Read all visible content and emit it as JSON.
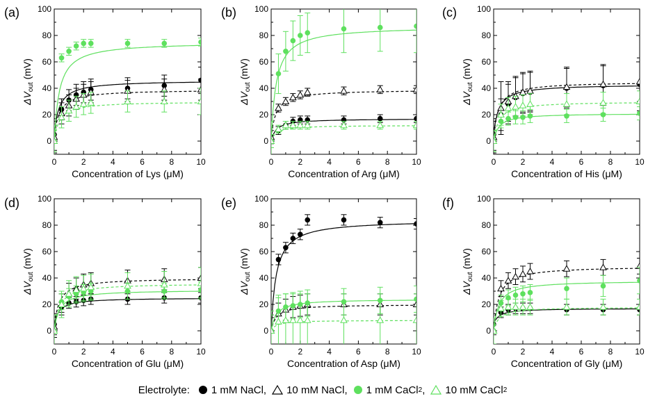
{
  "figure": {
    "y_label_main": "ΔV",
    "y_label_sub": "out",
    "y_label_unit": " (mV)"
  },
  "legend": {
    "title": "Electrolyte:",
    "items": [
      {
        "label": "1 mM NaCl,",
        "marker": "filled-circle",
        "color": "#000000",
        "dashed": false
      },
      {
        "label": "10 mM NaCl,",
        "marker": "open-triangle",
        "color": "#000000",
        "dashed": true
      },
      {
        "label": "1 mM CaCl",
        "sub": "2",
        "suffix": ",",
        "marker": "filled-circle",
        "color": "#5ee05e",
        "dashed": false
      },
      {
        "label": "10 mM CaCl",
        "sub": "2",
        "suffix": "",
        "marker": "open-triangle",
        "color": "#5ee05e",
        "dashed": true
      }
    ]
  },
  "chart_data": [
    {
      "type": "scatter",
      "panel": "(a)",
      "xlabel": "Concentration of Lys (μM)",
      "xlim": [
        0,
        10
      ],
      "ylim": [
        -10,
        100
      ],
      "xticks": [
        0,
        2,
        4,
        6,
        8,
        10
      ],
      "yticks": [
        0,
        20,
        40,
        60,
        80,
        100
      ],
      "x": [
        0,
        0.5,
        1,
        1.5,
        2,
        2.5,
        5,
        7.5,
        10
      ],
      "series": [
        {
          "key": "1 mM NaCl",
          "values": [
            5,
            24,
            31,
            35,
            37,
            39,
            40,
            42,
            46
          ],
          "errors": [
            12,
            8,
            8,
            8,
            8,
            8,
            8,
            8,
            10
          ]
        },
        {
          "key": "10 mM NaCl",
          "values": [
            3,
            21,
            27,
            32,
            35,
            37,
            38,
            39,
            39
          ],
          "errors": [
            12,
            8,
            8,
            8,
            8,
            8,
            8,
            8,
            8
          ]
        },
        {
          "key": "1 mM CaCl2",
          "values": [
            0,
            63,
            68,
            72,
            74,
            74,
            74,
            74,
            75
          ],
          "errors": [
            8,
            3,
            3,
            3,
            3,
            3,
            3,
            3,
            3
          ]
        },
        {
          "key": "10 mM CaCl2",
          "values": [
            0,
            18,
            23,
            26,
            28,
            29,
            30,
            30,
            30
          ],
          "errors": [
            12,
            8,
            8,
            8,
            8,
            8,
            8,
            8,
            10
          ]
        }
      ]
    },
    {
      "type": "scatter",
      "panel": "(b)",
      "xlabel": "Concentration of Arg (μM)",
      "xlim": [
        0,
        10
      ],
      "ylim": [
        -10,
        100
      ],
      "xticks": [
        0,
        2,
        4,
        6,
        8,
        10
      ],
      "yticks": [
        0,
        20,
        40,
        60,
        80,
        100
      ],
      "x": [
        0,
        0.5,
        1,
        1.5,
        2,
        2.5,
        5,
        7.5,
        10
      ],
      "series": [
        {
          "key": "1 mM NaCl",
          "values": [
            0,
            8,
            12,
            15,
            16,
            16,
            16,
            17,
            17
          ],
          "errors": [
            5,
            3,
            3,
            3,
            3,
            3,
            3,
            3,
            3
          ]
        },
        {
          "key": "10 mM NaCl",
          "values": [
            3,
            25,
            30,
            33,
            35,
            37,
            38,
            39,
            39
          ],
          "errors": [
            5,
            3,
            3,
            3,
            3,
            3,
            3,
            3,
            3
          ]
        },
        {
          "key": "1 mM CaCl2",
          "values": [
            0,
            51,
            68,
            76,
            80,
            82,
            85,
            86,
            87
          ],
          "errors": [
            15,
            15,
            15,
            15,
            15,
            15,
            18,
            18,
            20
          ]
        },
        {
          "key": "10 mM CaCl2",
          "values": [
            0,
            9,
            12,
            12,
            12,
            12,
            12,
            12,
            12
          ],
          "errors": [
            5,
            3,
            3,
            3,
            3,
            3,
            3,
            3,
            3
          ]
        }
      ]
    },
    {
      "type": "scatter",
      "panel": "(c)",
      "xlabel": "Concentration of His (μM)",
      "xlim": [
        0,
        10
      ],
      "ylim": [
        -10,
        100
      ],
      "xticks": [
        0,
        2,
        4,
        6,
        8,
        10
      ],
      "yticks": [
        0,
        20,
        40,
        60,
        80,
        100
      ],
      "x": [
        0,
        0.5,
        1,
        1.5,
        2,
        2.5,
        5,
        7.5,
        10
      ],
      "series": [
        {
          "key": "1 mM NaCl",
          "values": [
            5,
            20,
            28,
            33,
            36,
            37,
            40,
            42,
            43
          ],
          "errors": [
            12,
            12,
            15,
            15,
            15,
            15,
            15,
            15,
            20
          ]
        },
        {
          "key": "10 mM NaCl",
          "values": [
            3,
            25,
            30,
            34,
            37,
            38,
            41,
            43,
            45
          ],
          "errors": [
            12,
            20,
            15,
            15,
            15,
            15,
            15,
            15,
            15
          ]
        },
        {
          "key": "1 mM CaCl2",
          "values": [
            0,
            15,
            17,
            18,
            18,
            19,
            19,
            20,
            21
          ],
          "errors": [
            8,
            5,
            5,
            5,
            5,
            5,
            5,
            5,
            5
          ]
        },
        {
          "key": "10 mM CaCl2",
          "values": [
            0,
            20,
            25,
            26,
            27,
            28,
            28,
            29,
            30
          ],
          "errors": [
            8,
            8,
            8,
            8,
            8,
            8,
            8,
            8,
            8
          ]
        }
      ]
    },
    {
      "type": "scatter",
      "panel": "(d)",
      "xlabel": "Concentration of Glu (μM)",
      "xlim": [
        0,
        10
      ],
      "ylim": [
        -10,
        100
      ],
      "xticks": [
        0,
        2,
        4,
        6,
        8,
        10
      ],
      "yticks": [
        0,
        20,
        40,
        60,
        80,
        100
      ],
      "x": [
        0,
        0.5,
        1,
        1.5,
        2,
        2.5,
        5,
        7.5,
        10
      ],
      "series": [
        {
          "key": "1 mM NaCl",
          "values": [
            5,
            18,
            21,
            22,
            23,
            24,
            24,
            25,
            25
          ],
          "errors": [
            8,
            4,
            4,
            4,
            4,
            4,
            4,
            4,
            4
          ]
        },
        {
          "key": "10 mM NaCl",
          "values": [
            3,
            20,
            28,
            32,
            35,
            36,
            38,
            39,
            40
          ],
          "errors": [
            8,
            8,
            8,
            8,
            8,
            8,
            8,
            8,
            8
          ]
        },
        {
          "key": "1 mM CaCl2",
          "values": [
            0,
            22,
            26,
            28,
            29,
            30,
            30,
            30,
            31
          ],
          "errors": [
            12,
            6,
            6,
            6,
            6,
            6,
            6,
            6,
            6
          ]
        },
        {
          "key": "10 mM CaCl2",
          "values": [
            0,
            20,
            28,
            31,
            32,
            33,
            34,
            35,
            36
          ],
          "errors": [
            12,
            10,
            10,
            10,
            10,
            10,
            10,
            10,
            12
          ]
        }
      ]
    },
    {
      "type": "scatter",
      "panel": "(e)",
      "xlabel": "Concentration of Asp (μM)",
      "xlim": [
        0,
        10
      ],
      "ylim": [
        -10,
        100
      ],
      "xticks": [
        0,
        2,
        4,
        6,
        8,
        10
      ],
      "yticks": [
        0,
        20,
        40,
        60,
        80,
        100
      ],
      "x": [
        0,
        0.5,
        1,
        1.5,
        2,
        2.5,
        5,
        7.5,
        10
      ],
      "series": [
        {
          "key": "1 mM NaCl",
          "values": [
            0,
            54,
            63,
            70,
            73,
            84,
            84,
            82,
            81
          ],
          "errors": [
            10,
            4,
            4,
            4,
            4,
            4,
            4,
            4,
            4
          ]
        },
        {
          "key": "10 mM NaCl",
          "values": [
            0,
            13,
            16,
            18,
            19,
            20,
            20,
            20,
            20
          ],
          "errors": [
            12,
            8,
            8,
            8,
            8,
            8,
            8,
            8,
            8
          ]
        },
        {
          "key": "1 mM CaCl2",
          "values": [
            0,
            15,
            18,
            19,
            20,
            21,
            22,
            23,
            24
          ],
          "errors": [
            12,
            10,
            10,
            10,
            10,
            10,
            10,
            10,
            10
          ]
        },
        {
          "key": "10 mM CaCl2",
          "values": [
            0,
            7,
            8,
            8,
            8,
            8,
            8,
            8,
            8
          ],
          "errors": [
            15,
            20,
            20,
            20,
            20,
            20,
            20,
            20,
            20
          ]
        }
      ]
    },
    {
      "type": "scatter",
      "panel": "(f)",
      "xlabel": "Concentration of Gly (μM)",
      "xlim": [
        0,
        10
      ],
      "ylim": [
        -10,
        100
      ],
      "xticks": [
        0,
        2,
        4,
        6,
        8,
        10
      ],
      "yticks": [
        0,
        20,
        40,
        60,
        80,
        100
      ],
      "x": [
        0,
        0.5,
        1,
        1.5,
        2,
        2.5,
        5,
        7.5,
        10
      ],
      "series": [
        {
          "key": "1 mM NaCl",
          "values": [
            5,
            14,
            16,
            17,
            17,
            17,
            16,
            16,
            16
          ],
          "errors": [
            8,
            4,
            4,
            4,
            4,
            4,
            4,
            4,
            4
          ]
        },
        {
          "key": "10 mM NaCl",
          "values": [
            0,
            32,
            38,
            41,
            43,
            45,
            47,
            48,
            49
          ],
          "errors": [
            10,
            6,
            6,
            6,
            6,
            6,
            6,
            6,
            6
          ]
        },
        {
          "key": "1 mM CaCl2",
          "values": [
            0,
            21,
            25,
            27,
            28,
            29,
            32,
            34,
            38
          ],
          "errors": [
            10,
            6,
            6,
            6,
            6,
            6,
            8,
            8,
            10
          ]
        },
        {
          "key": "10 mM CaCl2",
          "values": [
            0,
            17,
            18,
            18,
            18,
            18,
            18,
            18,
            18
          ],
          "errors": [
            10,
            6,
            6,
            6,
            6,
            6,
            6,
            6,
            6
          ]
        }
      ]
    }
  ]
}
